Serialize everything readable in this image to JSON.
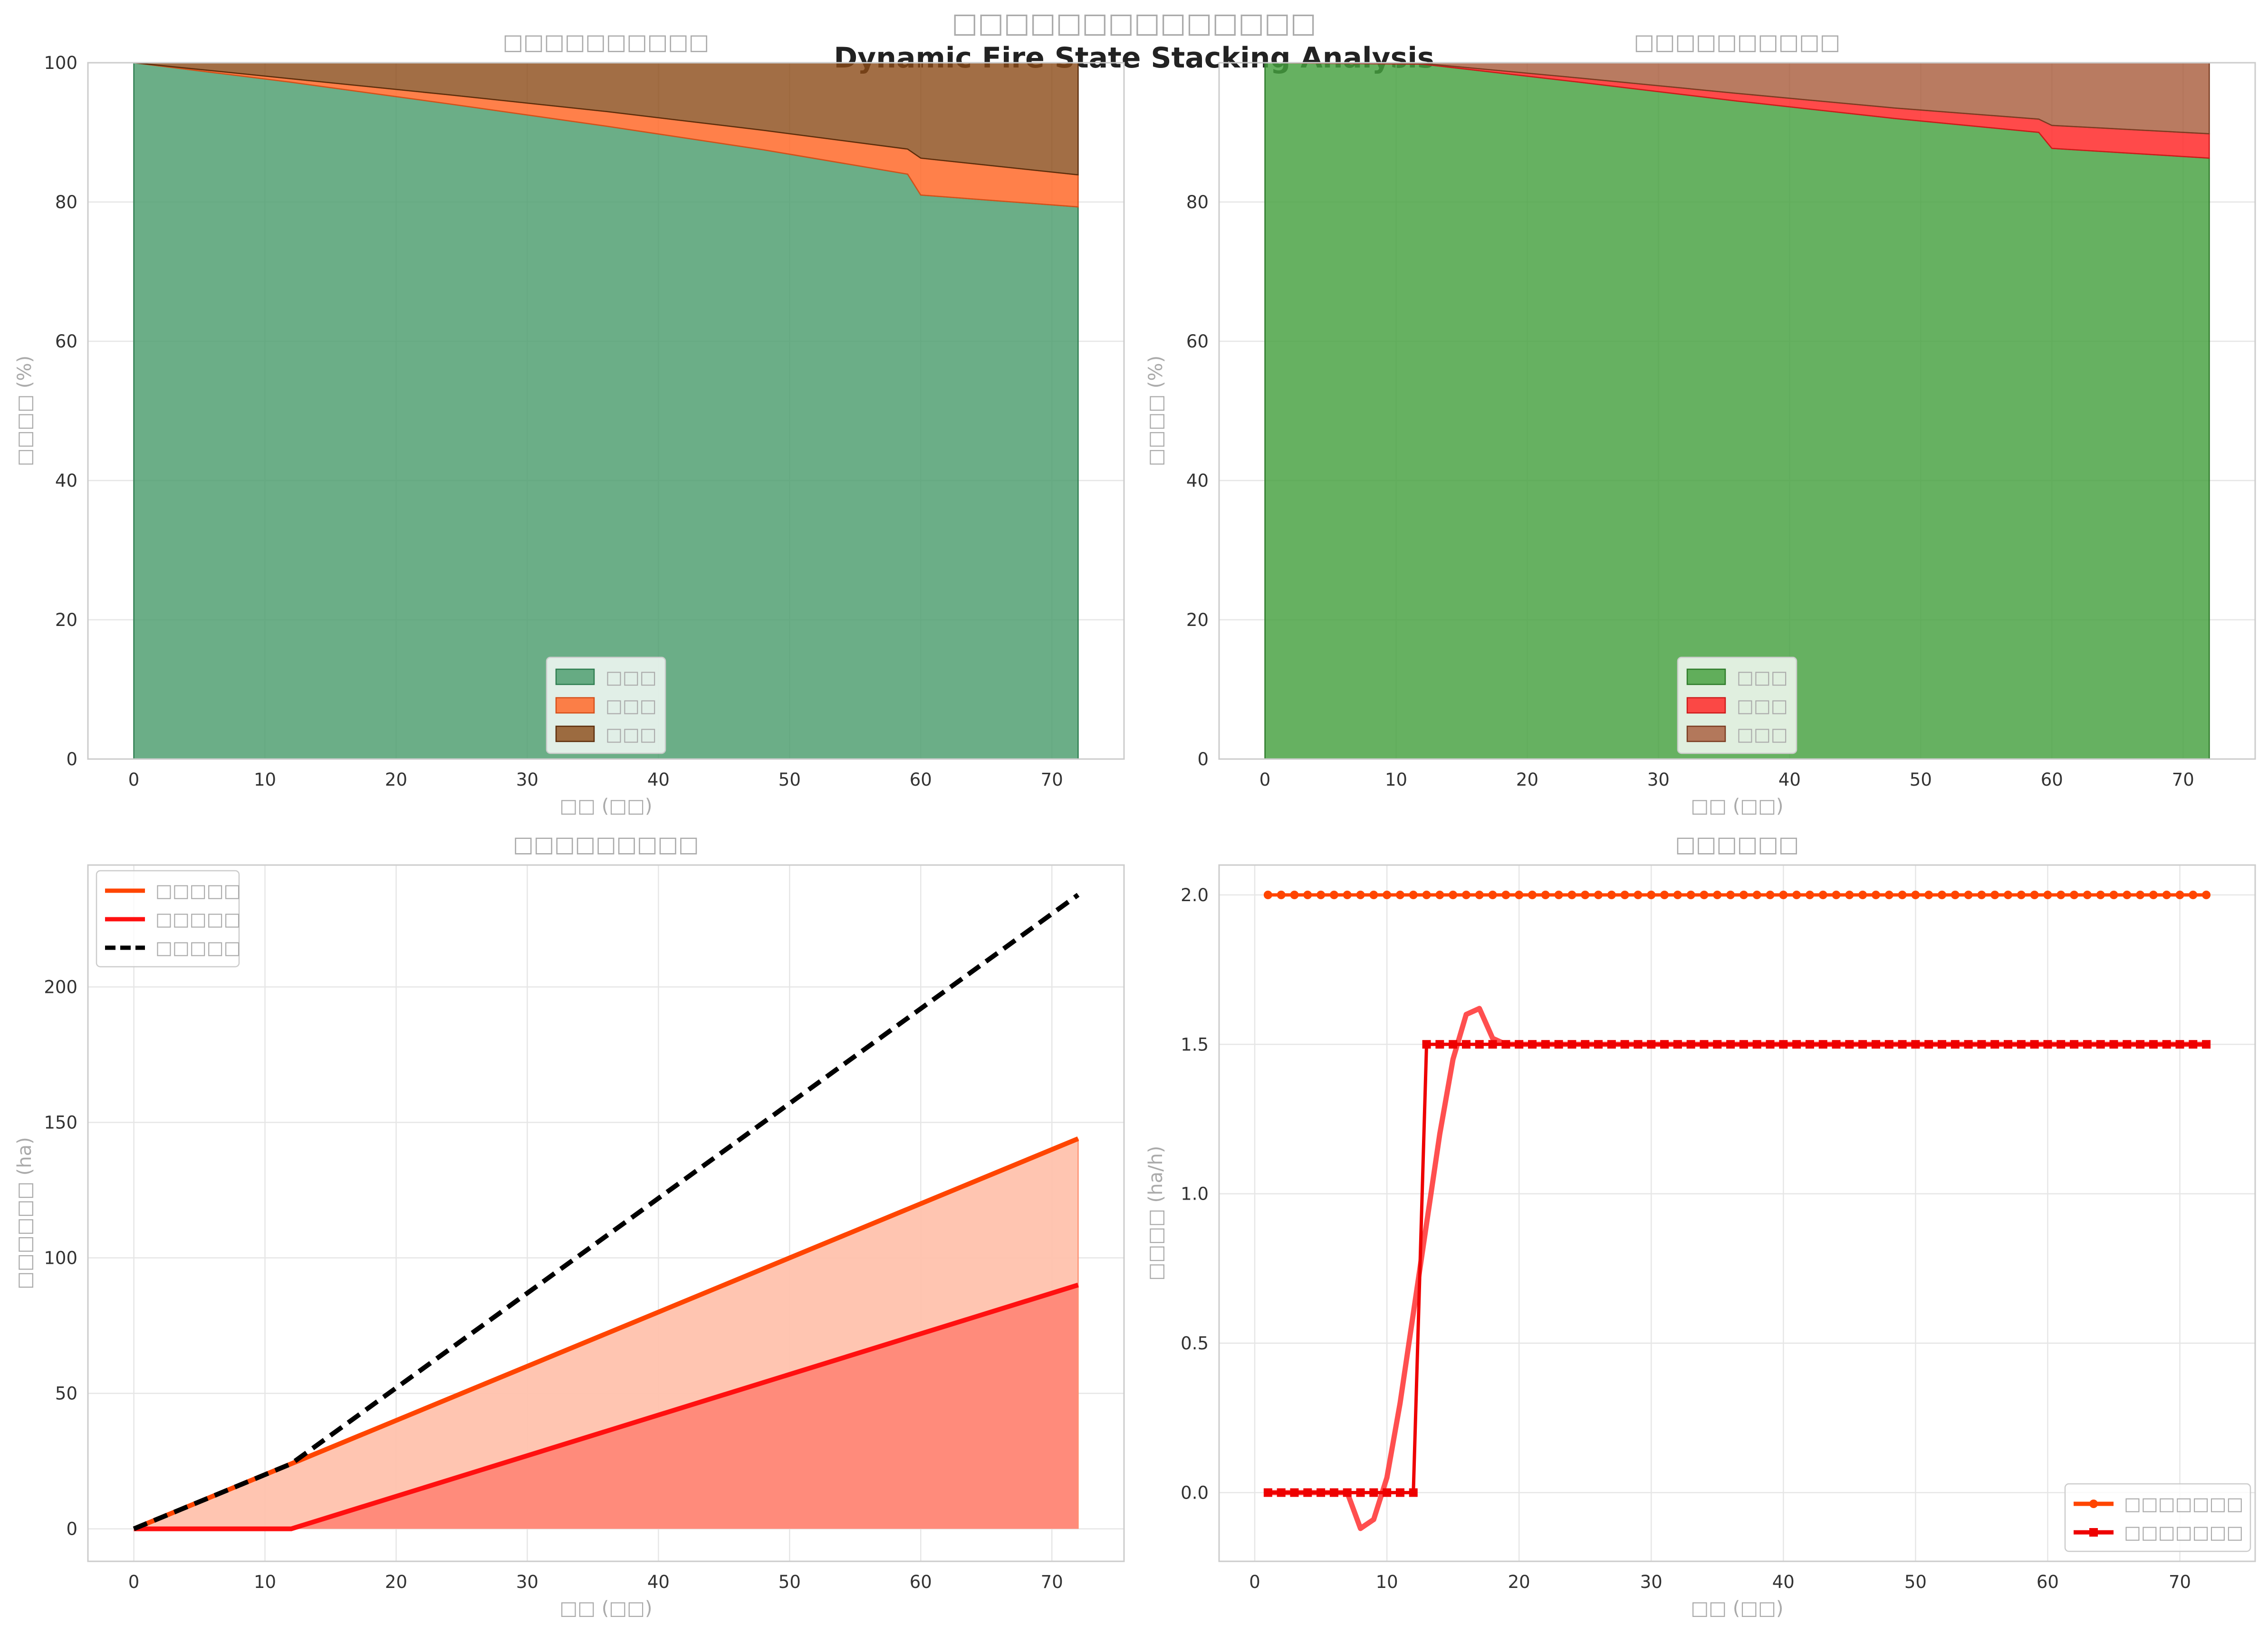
{
  "figure": {
    "title": "□□□□□□□□□□□□□□",
    "subtitle": "Dynamic Fire State Stacking Analysis"
  },
  "colors": {
    "p1_unburned": "#4a9c6d",
    "p1_burning": "#ff6a2a",
    "p1_burned": "#8b4a17",
    "p2_unburned": "#44a03e",
    "p2_burning": "#ff2a2a",
    "p2_burned": "#a85a3a",
    "p3_line1": "#ff4500",
    "p3_fill1": "#ffc2ad",
    "p3_line2": "#ff1010",
    "p3_fill2": "#ff8878",
    "p3_total": "#000000",
    "p4_s1": "#ff4500",
    "p4_s2": "#ee0000",
    "p4_smooth": "#ff3030"
  },
  "chart_data": [
    {
      "type": "area",
      "title": "□□□□□□□□□□",
      "xlabel": "□□ (□□)",
      "ylabel": "□□□□ (%)",
      "xlim": [
        -3.5,
        75.5
      ],
      "ylim": [
        0,
        100
      ],
      "xticks": [
        0,
        10,
        20,
        30,
        40,
        50,
        60,
        70
      ],
      "yticks": [
        0,
        20,
        40,
        60,
        80,
        100
      ],
      "x": [
        0,
        12,
        24,
        36,
        48,
        59,
        60,
        72
      ],
      "series": [
        {
          "name": "□□□",
          "values": [
            100,
            97.2,
            94.1,
            90.9,
            87.5,
            84.0,
            81.0,
            79.3
          ]
        },
        {
          "name": "□□□",
          "values": [
            0,
            0.5,
            1.3,
            2.1,
            2.8,
            3.6,
            5.3,
            4.6
          ]
        },
        {
          "name": "□□□",
          "values": [
            0,
            2.3,
            4.6,
            7.0,
            9.7,
            12.4,
            13.7,
            16.1
          ]
        }
      ],
      "legend": "lower-center",
      "grid": true
    },
    {
      "type": "area",
      "title": "□□□□□□□□□□",
      "xlabel": "□□ (□□)",
      "ylabel": "□□□□ (%)",
      "xlim": [
        -3.5,
        75.5
      ],
      "ylim": [
        0,
        100
      ],
      "xticks": [
        0,
        10,
        20,
        30,
        40,
        50,
        60,
        70
      ],
      "yticks": [
        0,
        20,
        40,
        60,
        80
      ],
      "x": [
        0,
        12,
        24,
        36,
        48,
        59,
        60,
        72
      ],
      "series": [
        {
          "name": "□□□",
          "values": [
            100,
            99.8,
            97.2,
            94.5,
            92.0,
            90.0,
            87.7,
            86.3
          ]
        },
        {
          "name": "□□□",
          "values": [
            0,
            0.1,
            0.6,
            1.1,
            1.5,
            1.9,
            3.3,
            3.5
          ]
        },
        {
          "name": "□□□",
          "values": [
            0,
            0.1,
            2.2,
            4.4,
            6.5,
            8.1,
            9.0,
            10.2
          ]
        }
      ],
      "legend": "lower-center",
      "grid": true
    },
    {
      "type": "line",
      "title": "□□□□□□□□□",
      "xlabel": "□□ (□□)",
      "ylabel": "□□□□□□ (ha)",
      "xlim": [
        -3.5,
        75.5
      ],
      "ylim": [
        -12,
        245
      ],
      "xticks": [
        0,
        10,
        20,
        30,
        40,
        50,
        60,
        70
      ],
      "yticks": [
        0,
        50,
        100,
        150,
        200
      ],
      "series": [
        {
          "name": "□□□□□",
          "x": [
            0,
            12,
            72
          ],
          "values": [
            0,
            24,
            144
          ]
        },
        {
          "name": "□□□□□",
          "x": [
            0,
            12,
            72
          ],
          "values": [
            0,
            0,
            90
          ]
        },
        {
          "name": "□□□□□",
          "x": [
            0,
            12,
            72
          ],
          "values": [
            0,
            24,
            234
          ]
        }
      ],
      "legend": "upper-left",
      "grid": true
    },
    {
      "type": "line",
      "title": "□□□□□□",
      "xlabel": "□□ (□□)",
      "ylabel": "□□□□ (ha/h)",
      "xlim": [
        -2.7,
        75.7
      ],
      "ylim": [
        -0.23,
        2.1
      ],
      "xticks": [
        0,
        10,
        20,
        30,
        40,
        50,
        60,
        70
      ],
      "yticks": [
        0.0,
        0.5,
        1.0,
        1.5,
        2.0
      ],
      "series": [
        {
          "name": "□□□□□□□",
          "x_start": 1,
          "x_end": 72,
          "values_const": 2.0,
          "marker": "circle"
        },
        {
          "name": "□□□□□□□",
          "x_step": [
            1,
            12,
            13,
            72
          ],
          "values": [
            0,
            0,
            1.5,
            1.5
          ],
          "marker": "square"
        },
        {
          "name": "",
          "x": [
            1,
            6,
            7,
            8,
            9,
            10,
            11,
            12,
            13,
            14,
            15,
            16,
            17,
            18,
            19,
            72
          ],
          "values": [
            0,
            0,
            0,
            -0.12,
            -0.09,
            0.05,
            0.3,
            0.6,
            0.9,
            1.2,
            1.45,
            1.6,
            1.62,
            1.52,
            1.5,
            1.5
          ],
          "marker": "none"
        }
      ],
      "legend": "lower-right",
      "grid": true
    }
  ]
}
